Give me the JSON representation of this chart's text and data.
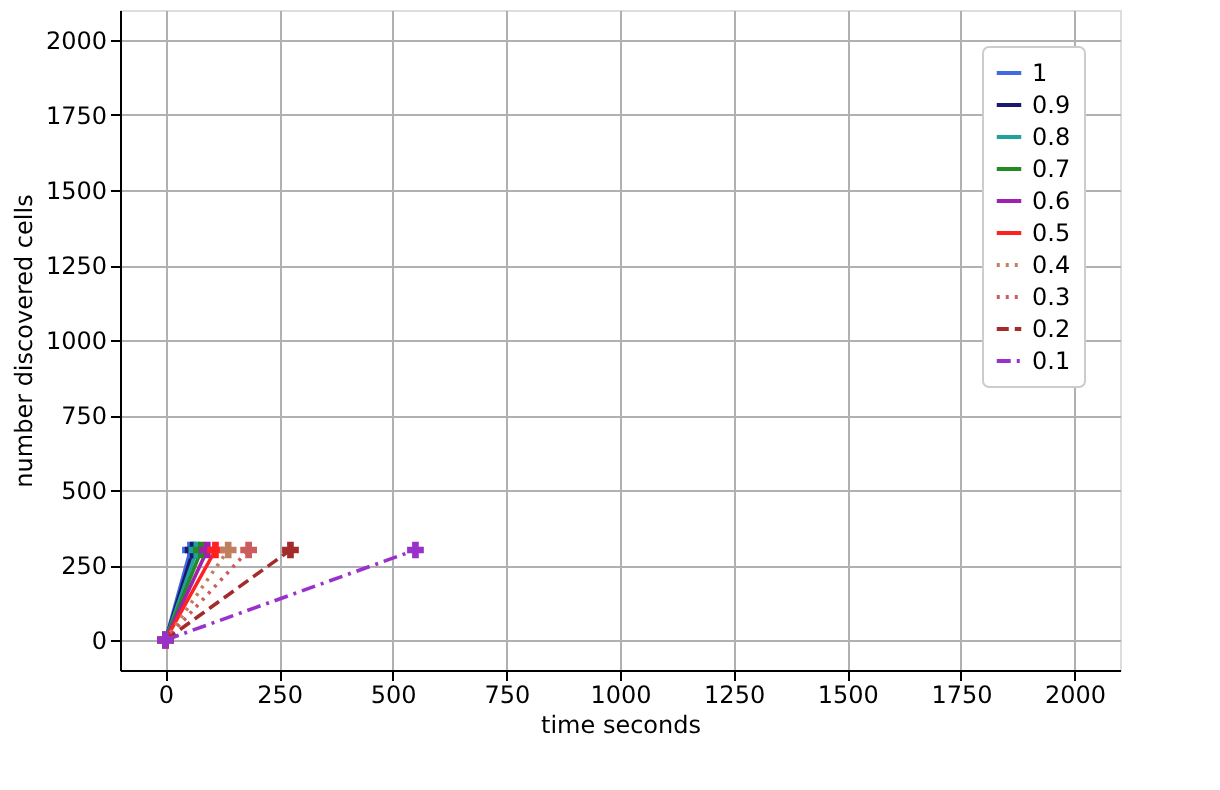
{
  "chart_data": {
    "type": "line",
    "xlabel": "time seconds",
    "ylabel": "number discovered cells",
    "xlim": [
      -100,
      2100
    ],
    "ylim": [
      -100,
      2100
    ],
    "xticks": [
      0,
      250,
      500,
      750,
      1000,
      1250,
      1500,
      1750,
      2000
    ],
    "yticks": [
      0,
      250,
      500,
      750,
      1000,
      1250,
      1500,
      1750,
      2000
    ],
    "grid": true,
    "legend": "top right",
    "marker": "cross",
    "series": [
      {
        "name": "1",
        "color": "#4169e1",
        "line_style": "solid",
        "x": [
          0,
          55
        ],
        "values": [
          0,
          300
        ]
      },
      {
        "name": "0.9",
        "color": "#191970",
        "line_style": "solid",
        "x": [
          0,
          61
        ],
        "values": [
          0,
          300
        ]
      },
      {
        "name": "0.8",
        "color": "#20a0a0",
        "line_style": "solid",
        "x": [
          0,
          69
        ],
        "values": [
          0,
          300
        ]
      },
      {
        "name": "0.7",
        "color": "#228b22",
        "line_style": "solid",
        "x": [
          0,
          79
        ],
        "values": [
          0,
          300
        ]
      },
      {
        "name": "0.6",
        "color": "#a020b0",
        "line_style": "solid",
        "x": [
          0,
          92
        ],
        "values": [
          0,
          300
        ]
      },
      {
        "name": "0.5",
        "color": "#ff2020",
        "line_style": "solid",
        "x": [
          0,
          110
        ],
        "values": [
          0,
          300
        ]
      },
      {
        "name": "0.4",
        "color": "#c08060",
        "line_style": "dotted",
        "x": [
          0,
          138
        ],
        "values": [
          0,
          300
        ]
      },
      {
        "name": "0.3",
        "color": "#cd5c5c",
        "line_style": "dotted",
        "x": [
          0,
          183
        ],
        "values": [
          0,
          300
        ]
      },
      {
        "name": "0.2",
        "color": "#a52a2a",
        "line_style": "dashed",
        "x": [
          0,
          275
        ],
        "values": [
          0,
          300
        ]
      },
      {
        "name": "0.1",
        "color": "#9932cc",
        "line_style": "dashdot",
        "x": [
          0,
          550
        ],
        "values": [
          0,
          300
        ]
      }
    ]
  }
}
